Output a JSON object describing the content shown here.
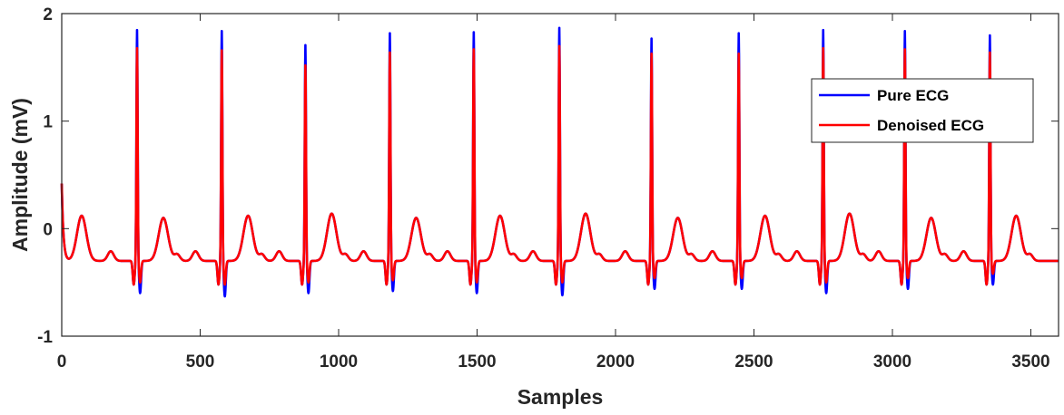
{
  "chart_data": {
    "type": "line",
    "title": "",
    "xlabel": "Samples",
    "ylabel": "Amplitude (mV)",
    "xlim": [
      0,
      3600
    ],
    "ylim": [
      -1,
      2
    ],
    "xticks": [
      0,
      500,
      1000,
      1500,
      2000,
      2500,
      3000,
      3500
    ],
    "yticks": [
      -1,
      0,
      1,
      2
    ],
    "grid": false,
    "legend_position": "upper-right",
    "colors": {
      "pure": "#0000ff",
      "denoised": "#ff0000",
      "axes": "#262626"
    },
    "series": [
      {
        "name": "Pure ECG",
        "color": "#0000ff"
      },
      {
        "name": "Denoised ECG",
        "color": "#ff0000"
      }
    ],
    "beats": [
      {
        "r_sample": 272,
        "pure_r": 1.85,
        "denoised_r": 1.68,
        "pure_s": -0.6,
        "denoised_s": -0.5
      },
      {
        "r_sample": 578,
        "pure_r": 1.84,
        "denoised_r": 1.66,
        "pure_s": -0.63,
        "denoised_s": -0.52
      },
      {
        "r_sample": 880,
        "pure_r": 1.71,
        "denoised_r": 1.52,
        "pure_s": -0.6,
        "denoised_s": -0.5
      },
      {
        "r_sample": 1185,
        "pure_r": 1.82,
        "denoised_r": 1.64,
        "pure_s": -0.58,
        "denoised_s": -0.48
      },
      {
        "r_sample": 1488,
        "pure_r": 1.83,
        "denoised_r": 1.67,
        "pure_s": -0.6,
        "denoised_s": -0.5
      },
      {
        "r_sample": 1797,
        "pure_r": 1.87,
        "denoised_r": 1.7,
        "pure_s": -0.62,
        "denoised_s": -0.5
      },
      {
        "r_sample": 2130,
        "pure_r": 1.77,
        "denoised_r": 1.63,
        "pure_s": -0.56,
        "denoised_s": -0.46
      },
      {
        "r_sample": 2445,
        "pure_r": 1.82,
        "denoised_r": 1.63,
        "pure_s": -0.56,
        "denoised_s": -0.46
      },
      {
        "r_sample": 2750,
        "pure_r": 1.85,
        "denoised_r": 1.68,
        "pure_s": -0.6,
        "denoised_s": -0.5
      },
      {
        "r_sample": 3045,
        "pure_r": 1.84,
        "denoised_r": 1.67,
        "pure_s": -0.56,
        "denoised_s": -0.46
      },
      {
        "r_sample": 3352,
        "pure_r": 1.8,
        "denoised_r": 1.64,
        "pure_s": -0.52,
        "denoised_s": -0.42
      }
    ],
    "baseline_mv": -0.3,
    "t_wave_peak_mv": 0.12,
    "start_value_mv": 0.42
  }
}
